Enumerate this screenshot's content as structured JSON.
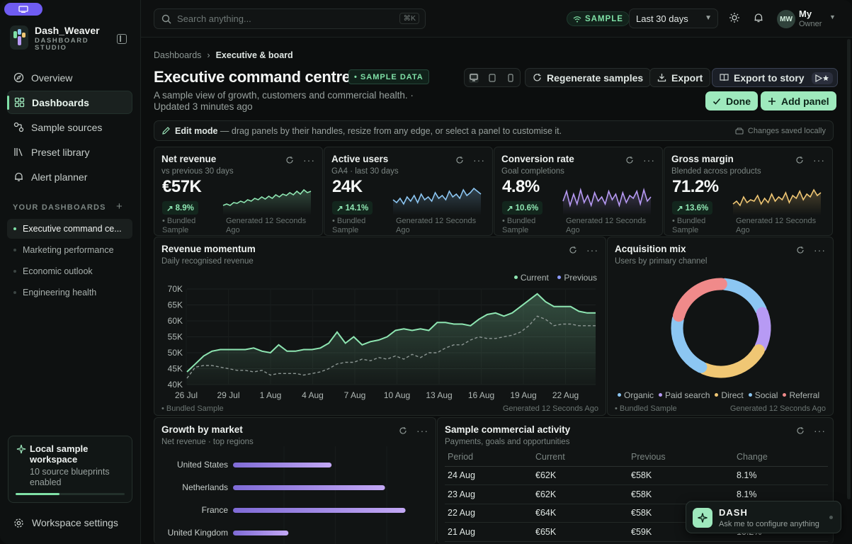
{
  "sidebar": {
    "brand_name": "Dash_Weaver",
    "brand_sub": "DASHBOARD STUDIO",
    "nav": [
      {
        "label": "Overview",
        "icon": "compass-icon"
      },
      {
        "label": "Dashboards",
        "icon": "grid-icon"
      },
      {
        "label": "Sample sources",
        "icon": "sources-icon"
      },
      {
        "label": "Preset library",
        "icon": "library-icon"
      },
      {
        "label": "Alert planner",
        "icon": "bell-alert-icon"
      }
    ],
    "your_dashboards": "YOUR DASHBOARDS",
    "dashboards": [
      "Executive command ce...",
      "Marketing performance",
      "Economic outlook",
      "Engineering health"
    ],
    "local_title": "Local sample workspace",
    "local_sub": "10 source blueprints enabled",
    "local_progress": 0.4,
    "settings": "Workspace settings"
  },
  "topbar": {
    "search_placeholder": "Search anything...",
    "shortcut": "⌘K",
    "sample": "SAMPLE",
    "range": "Last 30 days",
    "avatar": "MW",
    "user": "My",
    "role": "Owner"
  },
  "header": {
    "breadcrumb_root": "Dashboards",
    "breadcrumb_current": "Executive & board",
    "title": "Executive command centre",
    "badge": "SAMPLE DATA",
    "description": "A sample view of growth, customers and commercial health. · Updated 3 minutes ago",
    "regenerate": "Regenerate samples",
    "export": "Export",
    "export_story": "Export to story",
    "done": "Done",
    "add_panel": "Add panel"
  },
  "edit_bar": {
    "label": "Edit mode",
    "text": " — drag panels by their handles, resize from any edge, or select a panel to customise it.",
    "saved": "Changes saved locally"
  },
  "kpis": [
    {
      "title": "Net revenue",
      "sub": "vs previous 30 days",
      "value": "€57K",
      "delta": "8.9%",
      "foot_l": "Bundled Sample",
      "foot_r": "Generated 12 Seconds Ago",
      "color": "#8ee6b2"
    },
    {
      "title": "Active users",
      "sub": "GA4 · last 30 days",
      "value": "24K",
      "delta": "14.1%",
      "foot_l": "Bundled Sample",
      "foot_r": "Generated 12 Seconds Ago",
      "color": "#8cc6f2"
    },
    {
      "title": "Conversion rate",
      "sub": "Goal completions",
      "value": "4.8%",
      "delta": "10.6%",
      "foot_l": "Bundled Sample",
      "foot_r": "Generated 12 Seconds Ago",
      "color": "#b79af4"
    },
    {
      "title": "Gross margin",
      "sub": "Blended across products",
      "value": "71.2%",
      "delta": "13.6%",
      "foot_l": "Bundled Sample",
      "foot_r": "Generated 12 Seconds Ago",
      "color": "#f0c774"
    }
  ],
  "momentum": {
    "title": "Revenue momentum",
    "sub": "Daily recognised revenue",
    "legend_current": "Current",
    "legend_previous": "Previous",
    "foot_l": "Bundled Sample",
    "foot_r": "Generated 12 Seconds Ago"
  },
  "mix": {
    "title": "Acquisition mix",
    "sub": "Users by primary channel",
    "foot_l": "Bundled Sample",
    "foot_r": "Generated 12 Seconds Ago"
  },
  "growth": {
    "title": "Growth by market",
    "sub": "Net revenue · top regions"
  },
  "activity": {
    "title": "Sample commercial activity",
    "sub": "Payments, goals and opportunities",
    "columns": [
      "Period",
      "Current",
      "Previous",
      "Change"
    ],
    "rows": [
      [
        "24 Aug",
        "€62K",
        "€58K",
        "8.1%"
      ],
      [
        "23 Aug",
        "€62K",
        "€58K",
        "8.1%"
      ],
      [
        "22 Aug",
        "€64K",
        "€58K",
        "10.3%"
      ],
      [
        "21 Aug",
        "€65K",
        "€59K",
        "10.2%"
      ]
    ]
  },
  "chat": {
    "name": "DASH",
    "sub": "Ask me to configure anything"
  },
  "chart_data": [
    {
      "type": "line",
      "title": "Revenue momentum",
      "ylim": [
        40000,
        70000
      ],
      "yticks": [
        "70K",
        "65K",
        "60K",
        "55K",
        "50K",
        "45K",
        "40K"
      ],
      "xticks": [
        "26 Jul",
        "29 Jul",
        "1 Aug",
        "4 Aug",
        "7 Aug",
        "10 Aug",
        "13 Aug",
        "16 Aug",
        "19 Aug",
        "22 Aug"
      ],
      "series": [
        {
          "name": "Current",
          "color": "#8ee6b2",
          "values": [
            44000,
            46500,
            49000,
            50500,
            51000,
            51000,
            51000,
            51000,
            51500,
            50500,
            50000,
            52500,
            50500,
            50500,
            51000,
            51000,
            51500,
            53000,
            56500,
            53000,
            55000,
            52500,
            53500,
            54000,
            55000,
            57000,
            57500,
            57000,
            57500,
            57000,
            59500,
            59500,
            59000,
            59000,
            58500,
            60500,
            62000,
            62500,
            61500,
            62500,
            64500,
            66500,
            68500,
            66000,
            64500,
            64500,
            64500,
            63000,
            62500,
            62500
          ]
        },
        {
          "name": "Previous",
          "color": "#8c9693",
          "values": [
            42000,
            45500,
            46000,
            46000,
            45500,
            45000,
            44500,
            44500,
            44000,
            44500,
            43000,
            43500,
            43500,
            43500,
            43000,
            43500,
            44000,
            45000,
            46500,
            47000,
            47000,
            48000,
            47500,
            48500,
            48000,
            49000,
            48000,
            49500,
            48500,
            50000,
            50000,
            51500,
            52500,
            52500,
            54000,
            55000,
            54500,
            54500,
            55000,
            55500,
            56500,
            58500,
            61500,
            60500,
            58500,
            59000,
            59000,
            58500,
            58500,
            58500
          ]
        }
      ]
    },
    {
      "type": "pie",
      "title": "Acquisition mix",
      "categories": [
        "Organic",
        "Paid search",
        "Direct",
        "Social",
        "Referral"
      ],
      "values": [
        18,
        14,
        24,
        22,
        22
      ],
      "colors": [
        "#8cc6f2",
        "#b79af4",
        "#f0c774",
        "#8cc6f2",
        "#f08a8a"
      ]
    },
    {
      "type": "bar",
      "title": "Growth by market",
      "categories": [
        "United States",
        "Netherlands",
        "France",
        "United Kingdom"
      ],
      "values": [
        0.48,
        0.74,
        0.84,
        0.27
      ]
    }
  ]
}
